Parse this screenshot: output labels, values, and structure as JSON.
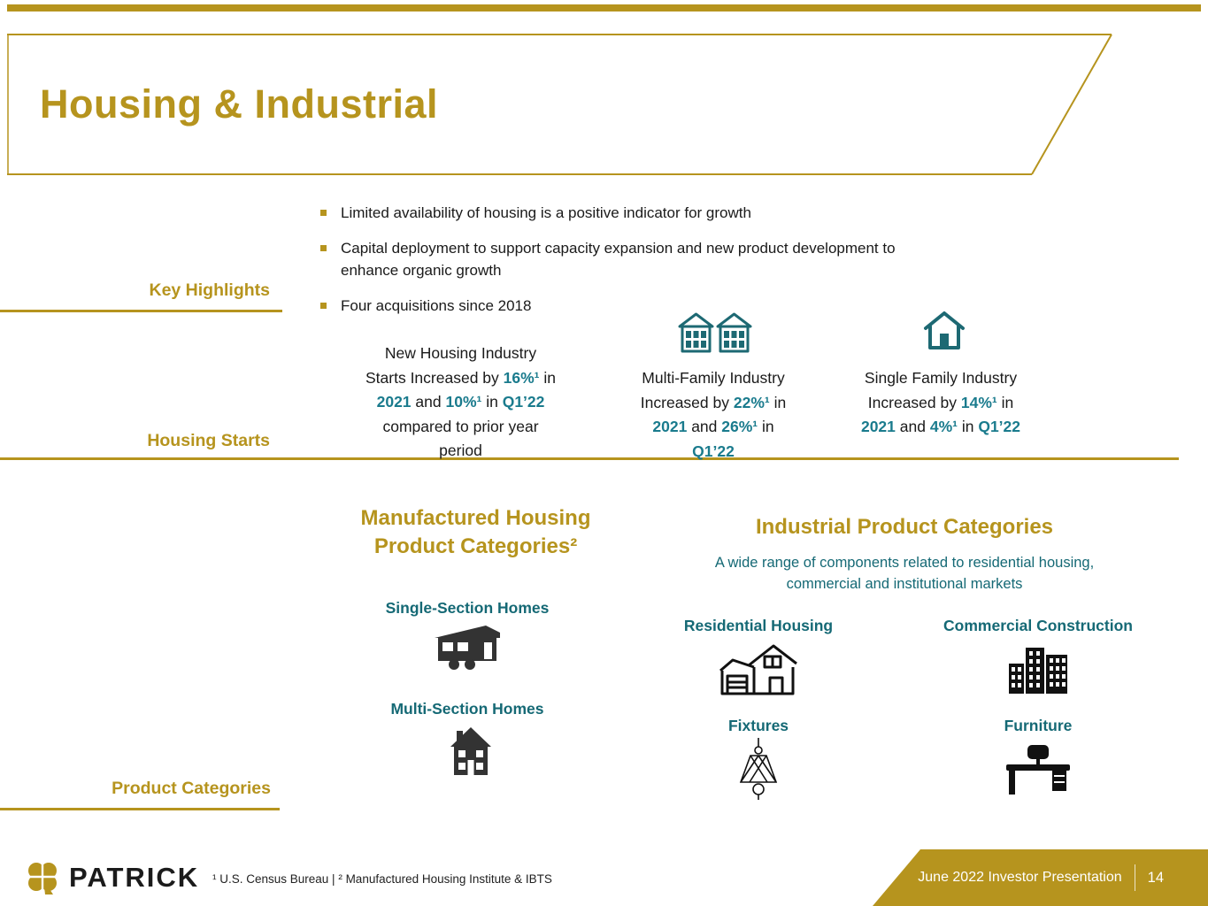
{
  "colors": {
    "gold": "#B6941E",
    "teal": "#156975",
    "highlight_teal": "#1A7B8D",
    "dark_text": "#1A1A1A"
  },
  "title": "Housing & Industrial",
  "key_highlights": {
    "label": "Key Highlights",
    "bullets": [
      "Limited availability of housing is a positive indicator for growth",
      "Capital deployment to support capacity expansion and new product development to\nenhance organic growth",
      "Four acquisitions since 2018"
    ]
  },
  "housing_starts": {
    "label": "Housing Starts",
    "columns": [
      {
        "icon": null,
        "segments": [
          {
            "t": "New Housing Industry\nStarts Increased by "
          },
          {
            "t": "16%¹",
            "h": true
          },
          {
            "t": " in\n"
          },
          {
            "t": "2021",
            "h": true
          },
          {
            "t": " and "
          },
          {
            "t": "10%¹",
            "h": true
          },
          {
            "t": " in "
          },
          {
            "t": "Q1’22",
            "h": true
          },
          {
            "t": "\ncompared to prior year\nperiod"
          }
        ]
      },
      {
        "icon": "multi-family-building-icon",
        "segments": [
          {
            "t": "Multi-Family Industry\nIncreased by "
          },
          {
            "t": "22%¹",
            "h": true
          },
          {
            "t": " in\n"
          },
          {
            "t": "2021",
            "h": true
          },
          {
            "t": " and "
          },
          {
            "t": "26%¹",
            "h": true
          },
          {
            "t": " in\n"
          },
          {
            "t": "Q1’22",
            "h": true
          }
        ]
      },
      {
        "icon": "single-family-home-icon",
        "segments": [
          {
            "t": "Single Family Industry\nIncreased by "
          },
          {
            "t": "14%¹",
            "h": true
          },
          {
            "t": " in\n"
          },
          {
            "t": "2021",
            "h": true
          },
          {
            "t": " and "
          },
          {
            "t": "4%¹",
            "h": true
          },
          {
            "t": " in "
          },
          {
            "t": "Q1’22",
            "h": true
          }
        ]
      }
    ]
  },
  "product_categories": {
    "label": "Product Categories",
    "manufactured": {
      "heading": "Manufactured Housing\nProduct Categories²",
      "items": [
        {
          "label": "Single-Section Homes",
          "icon": "single-section-home-icon"
        },
        {
          "label": "Multi-Section Homes",
          "icon": "multi-section-home-icon"
        }
      ]
    },
    "industrial": {
      "heading": "Industrial Product Categories",
      "subheading": "A wide range of components related to residential housing,\ncommercial and institutional markets",
      "items": [
        {
          "label": "Residential Housing",
          "icon": "residential-housing-icon"
        },
        {
          "label": "Commercial Construction",
          "icon": "commercial-construction-icon"
        },
        {
          "label": "Fixtures",
          "icon": "light-fixture-icon"
        },
        {
          "label": "Furniture",
          "icon": "furniture-desk-icon"
        }
      ]
    }
  },
  "footer": {
    "logo_text": "PATRICK",
    "logo_icon": "clover-icon",
    "footnote": "¹ U.S. Census Bureau | ² Manufactured Housing Institute & IBTS",
    "presentation_label": "June 2022 Investor Presentation",
    "page_number": "14"
  }
}
